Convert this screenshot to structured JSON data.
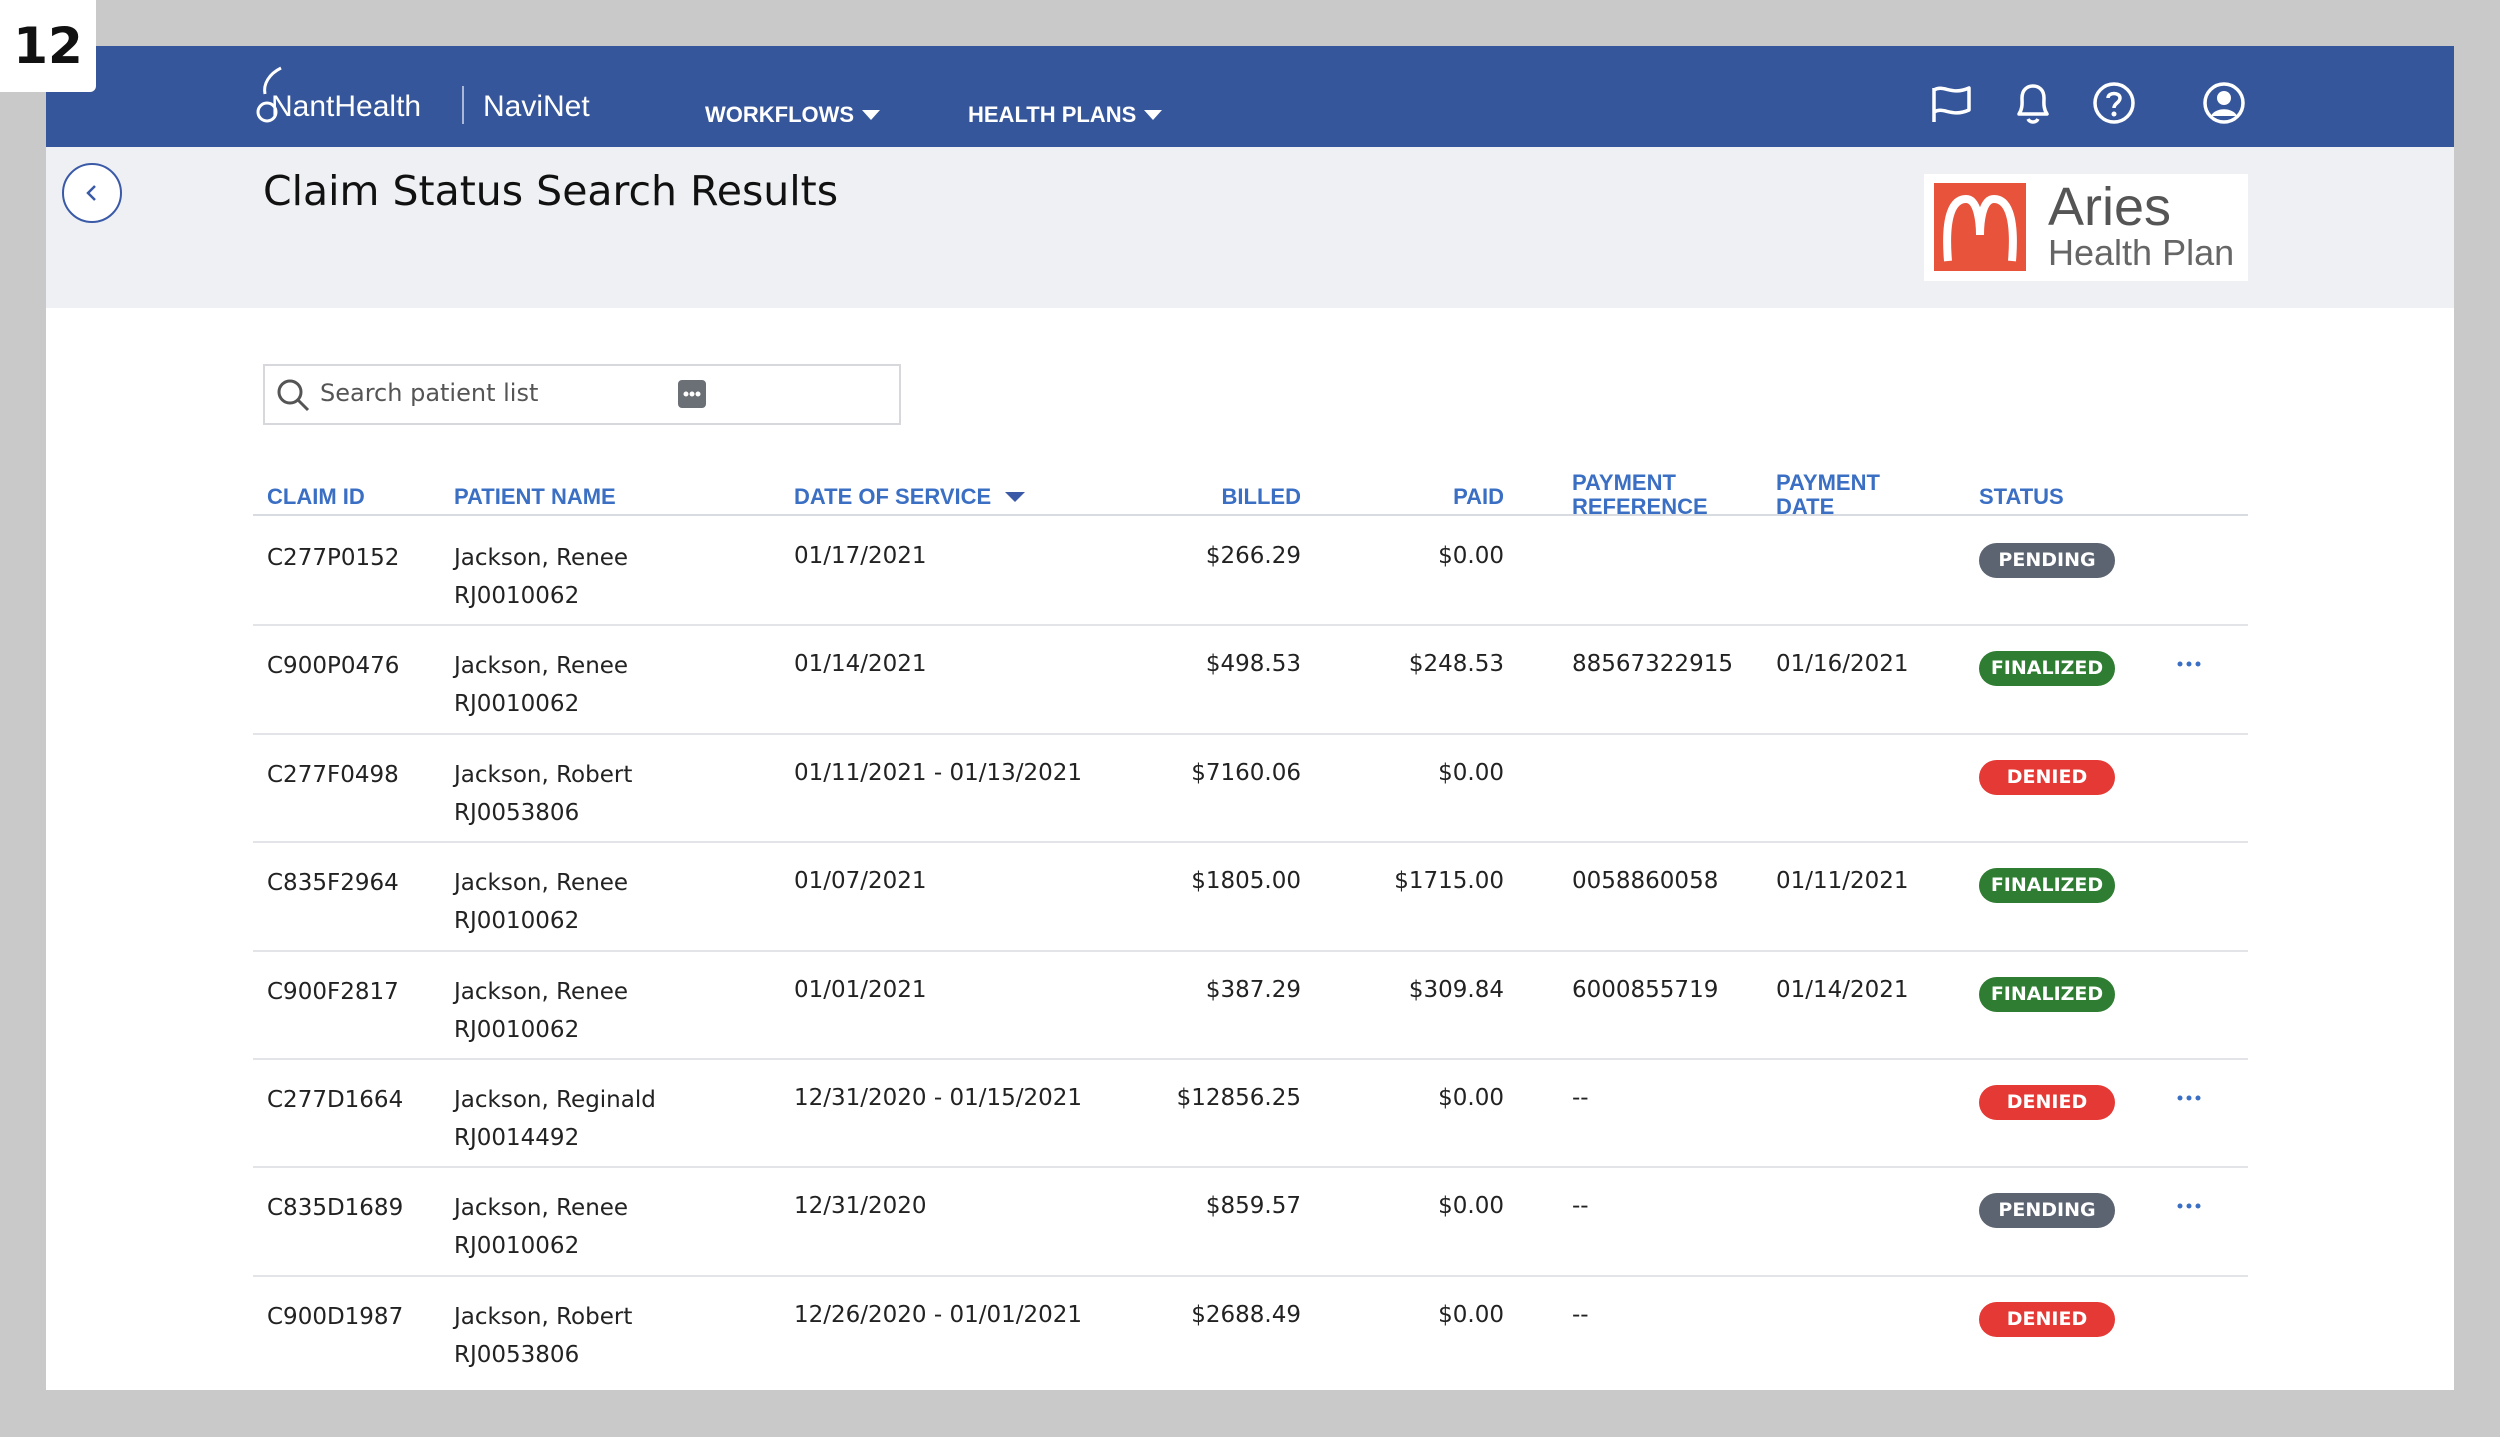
{
  "badge": "12",
  "header": {
    "brand": "NantHealth",
    "product": "NaviNet",
    "nav": [
      "WORKFLOWS",
      "HEALTH PLANS"
    ]
  },
  "page": {
    "title": "Claim Status Search Results",
    "plan": {
      "name": "Aries",
      "subtitle": "Health Plan"
    }
  },
  "search": {
    "placeholder": "Search patient list"
  },
  "table": {
    "columns": [
      "CLAIM ID",
      "PATIENT NAME",
      "DATE OF SERVICE",
      "BILLED",
      "PAID",
      "PAYMENT REFERENCE",
      "PAYMENT DATE",
      "STATUS"
    ],
    "rows": [
      {
        "claim_id": "C277P0152",
        "patient": "Jackson, Renee",
        "member_id": "RJ0010062",
        "date": "01/17/2021",
        "billed": "$266.29",
        "paid": "$0.00",
        "status": "PENDING",
        "status_color": "#5b6470"
      },
      {
        "claim_id": "C900P0476",
        "patient": "Jackson, Renee",
        "member_id": "RJ0010062",
        "date": "01/14/2021",
        "billed": "$498.53",
        "paid": "$248.53",
        "reference": "88567322915",
        "payment_date": "01/16/2021",
        "status": "FINALIZED",
        "status_color": "#2e7d32",
        "menu": true
      },
      {
        "claim_id": "C277F0498",
        "patient": "Jackson, Robert",
        "member_id": "RJ0053806",
        "date": "01/11/2021 - 01/13/2021",
        "billed": "$7160.06",
        "paid": "$0.00",
        "status": "DENIED",
        "status_color": "#e53935"
      },
      {
        "claim_id": "C835F2964",
        "patient": "Jackson, Renee",
        "member_id": "RJ0010062",
        "date": "01/07/2021",
        "billed": "$1805.00",
        "paid": "$1715.00",
        "reference": "0058860058",
        "payment_date": "01/11/2021",
        "status": "FINALIZED",
        "status_color": "#2e7d32"
      },
      {
        "claim_id": "C900F2817",
        "patient": "Jackson, Renee",
        "member_id": "RJ0010062",
        "date": "01/01/2021",
        "billed": "$387.29",
        "paid": "$309.84",
        "reference": "6000855719",
        "payment_date": "01/14/2021",
        "status": "FINALIZED",
        "status_color": "#2e7d32"
      },
      {
        "claim_id": "C277D1664",
        "patient": "Jackson, Reginald",
        "member_id": "RJ0014492",
        "date": "12/31/2020 - 01/15/2021",
        "billed": "$12856.25",
        "paid": "$0.00",
        "reference": "--",
        "status": "DENIED",
        "status_color": "#e53935",
        "menu": true
      },
      {
        "claim_id": "C835D1689",
        "patient": "Jackson, Renee",
        "member_id": "RJ0010062",
        "date": "12/31/2020",
        "billed": "$859.57",
        "paid": "$0.00",
        "reference": "--",
        "status": "PENDING",
        "status_color": "#5b6470",
        "menu": true
      },
      {
        "claim_id": "C900D1987",
        "patient": "Jackson, Robert",
        "member_id": "RJ0053806",
        "date": "12/26/2020 - 01/01/2021",
        "billed": "$2688.49",
        "paid": "$0.00",
        "reference": "--",
        "status": "DENIED",
        "status_color": "#e53935"
      }
    ]
  }
}
